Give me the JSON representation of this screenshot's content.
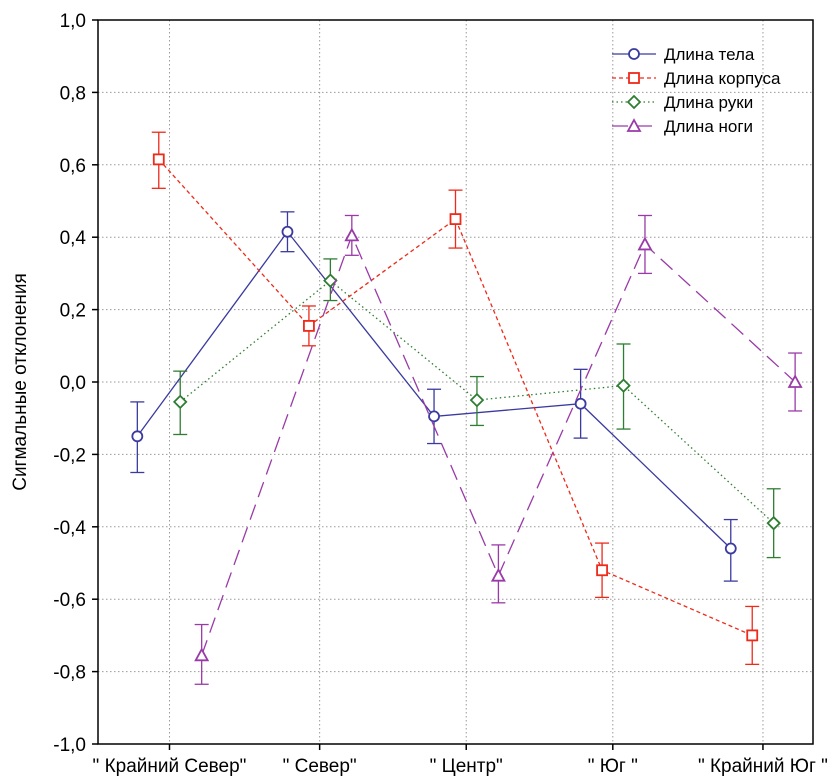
{
  "chart_data": {
    "type": "line",
    "ylabel": "Сигмальные отклонения",
    "ylim": [
      -1.0,
      1.0
    ],
    "yticks": [
      "1,0",
      "0,8",
      "0,6",
      "0,4",
      "0,2",
      "0,0",
      "-0,2",
      "-0,4",
      "-0,6",
      "-0,8",
      "-1,0"
    ],
    "categories": [
      "\" Крайний Север\"",
      "\" Север\"",
      "\" Центр\"",
      "\" Юг \"",
      "\" Крайний Юг \""
    ],
    "grid": true,
    "legend_position": "top-right",
    "error_bars": true,
    "series": [
      {
        "name": "Длина тела",
        "color": "#3a3aa0",
        "marker": "circle",
        "dash": "solid",
        "values": [
          -0.15,
          0.415,
          -0.095,
          -0.06,
          -0.46
        ],
        "lower": [
          -0.25,
          0.36,
          -0.17,
          -0.155,
          -0.55
        ],
        "upper": [
          -0.055,
          0.47,
          -0.02,
          0.035,
          -0.38
        ]
      },
      {
        "name": "Длина корпуса",
        "color": "#ee2a1a",
        "marker": "square",
        "dash": "short",
        "values": [
          0.615,
          0.155,
          0.45,
          -0.52,
          -0.7
        ],
        "lower": [
          0.535,
          0.1,
          0.37,
          -0.595,
          -0.78
        ],
        "upper": [
          0.69,
          0.21,
          0.53,
          -0.445,
          -0.62
        ]
      },
      {
        "name": "Длина руки",
        "color": "#2e7d32",
        "marker": "diamond",
        "dash": "dotted",
        "values": [
          -0.055,
          0.28,
          -0.05,
          -0.01,
          -0.39
        ],
        "lower": [
          -0.145,
          0.225,
          -0.12,
          -0.13,
          -0.485
        ],
        "upper": [
          0.03,
          0.34,
          0.015,
          0.105,
          -0.295
        ]
      },
      {
        "name": "Длина ноги",
        "color": "#9a3aa8",
        "marker": "triangle",
        "dash": "long",
        "values": [
          -0.755,
          0.405,
          -0.535,
          0.38,
          0.0
        ],
        "lower": [
          -0.835,
          0.35,
          -0.61,
          0.3,
          -0.08
        ],
        "upper": [
          -0.67,
          0.46,
          -0.45,
          0.46,
          0.08
        ]
      }
    ]
  }
}
